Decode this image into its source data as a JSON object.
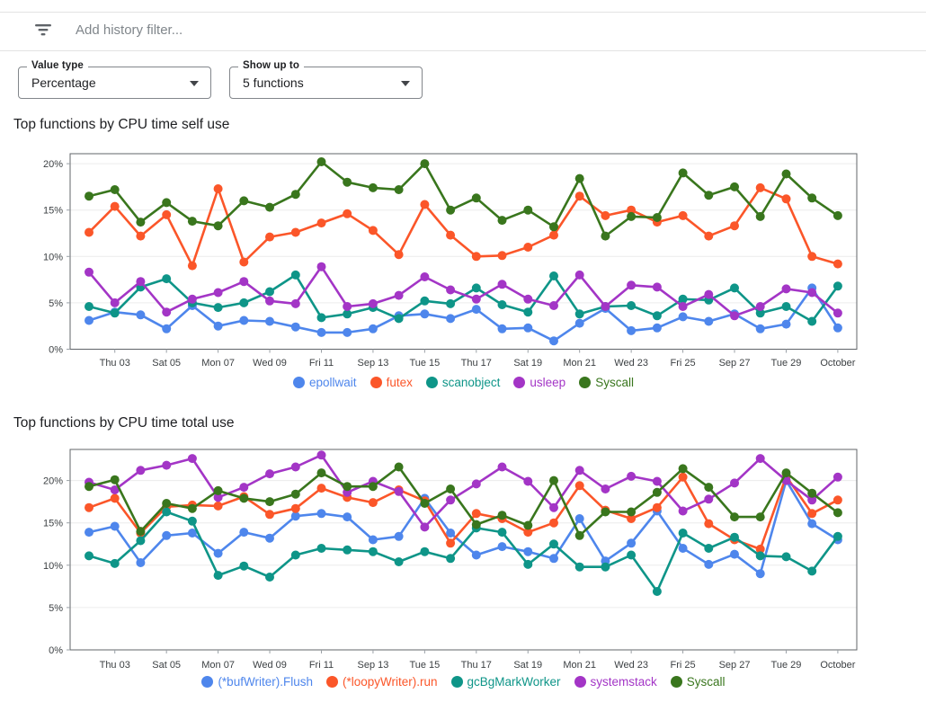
{
  "filter_bar": {
    "icon": "filter-list-icon",
    "placeholder": "Add history filter..."
  },
  "controls": {
    "value_type": {
      "label": "Value type",
      "value": "Percentage"
    },
    "show_up_to": {
      "label": "Show up to",
      "value": "5 functions"
    }
  },
  "chart_data": [
    {
      "type": "line",
      "title": "Top functions by CPU time self use",
      "xlabel": "",
      "ylabel": "",
      "ylim": [
        0,
        21
      ],
      "grid": true,
      "legend_position": "bottom",
      "yticks": [
        "0%",
        "5%",
        "10%",
        "15%",
        "20%"
      ],
      "x_tick_labels": [
        "Thu 03",
        "Sat 05",
        "Mon 07",
        "Wed 09",
        "Fri 11",
        "Sep 13",
        "Tue 15",
        "Thu 17",
        "Sat 19",
        "Mon 21",
        "Wed 23",
        "Fri 25",
        "Sep 27",
        "Tue 29",
        "October"
      ],
      "series": [
        {
          "name": "epollwait",
          "color": "#4e86ec",
          "values": [
            3.1,
            4.0,
            3.7,
            2.2,
            4.7,
            2.5,
            3.1,
            3.0,
            2.4,
            1.8,
            1.8,
            2.2,
            3.6,
            3.8,
            3.3,
            4.3,
            2.2,
            2.3,
            0.9,
            2.8,
            4.4,
            2.0,
            2.3,
            3.5,
            3.0,
            3.8,
            2.2,
            2.7,
            6.6,
            2.3
          ]
        },
        {
          "name": "futex",
          "color": "#fb5629",
          "values": [
            12.6,
            15.4,
            12.2,
            14.5,
            9.0,
            17.3,
            9.4,
            12.1,
            12.6,
            13.6,
            14.6,
            12.8,
            10.2,
            15.6,
            12.3,
            10.0,
            10.1,
            11.0,
            12.3,
            16.5,
            14.4,
            15.0,
            13.7,
            14.4,
            12.2,
            13.3,
            17.4,
            16.2,
            10.0,
            9.2
          ]
        },
        {
          "name": "scanobject",
          "color": "#0e9588",
          "values": [
            4.6,
            3.9,
            6.7,
            7.6,
            5.0,
            4.5,
            5.0,
            6.2,
            8.0,
            3.4,
            3.8,
            4.5,
            3.3,
            5.2,
            4.9,
            6.6,
            4.8,
            4.0,
            7.9,
            3.8,
            4.6,
            4.7,
            3.6,
            5.4,
            5.3,
            6.6,
            3.9,
            4.6,
            3.0,
            6.8
          ]
        },
        {
          "name": "usleep",
          "color": "#a335c6",
          "values": [
            8.3,
            5.0,
            7.3,
            4.0,
            5.4,
            6.1,
            7.3,
            5.2,
            4.9,
            8.9,
            4.6,
            4.9,
            5.8,
            7.8,
            6.4,
            5.4,
            7.0,
            5.4,
            4.7,
            8.0,
            4.6,
            6.9,
            6.7,
            4.6,
            5.9,
            3.6,
            4.6,
            6.5,
            6.1,
            3.9
          ]
        },
        {
          "name": "Syscall",
          "color": "#39761d",
          "values": [
            16.5,
            17.2,
            13.7,
            15.8,
            13.8,
            13.3,
            16.0,
            15.3,
            16.7,
            20.2,
            18.0,
            17.4,
            17.2,
            20.0,
            15.0,
            16.3,
            13.9,
            15.0,
            13.2,
            18.4,
            12.2,
            14.3,
            14.2,
            19.0,
            16.6,
            17.5,
            14.3,
            18.9,
            16.3,
            14.4
          ]
        }
      ]
    },
    {
      "type": "line",
      "title": "Top functions by CPU time total use",
      "xlabel": "",
      "ylabel": "",
      "ylim": [
        0,
        23.7
      ],
      "grid": true,
      "legend_position": "bottom",
      "yticks": [
        "0%",
        "5%",
        "10%",
        "15%",
        "20%"
      ],
      "x_tick_labels": [
        "Thu 03",
        "Sat 05",
        "Mon 07",
        "Wed 09",
        "Fri 11",
        "Sep 13",
        "Tue 15",
        "Thu 17",
        "Sat 19",
        "Mon 21",
        "Wed 23",
        "Fri 25",
        "Sep 27",
        "Tue 29",
        "October"
      ],
      "series": [
        {
          "name": "(*bufWriter).Flush",
          "color": "#4e86ec",
          "values": [
            13.9,
            14.6,
            10.3,
            13.5,
            13.8,
            11.4,
            13.9,
            13.2,
            15.8,
            16.1,
            15.7,
            13.0,
            13.4,
            17.9,
            13.8,
            11.2,
            12.2,
            11.6,
            10.8,
            15.5,
            10.5,
            12.6,
            16.4,
            12.0,
            10.1,
            11.3,
            9.0,
            20.0,
            14.9,
            13.0
          ]
        },
        {
          "name": "(*loopyWriter).run",
          "color": "#fb5629",
          "values": [
            16.8,
            17.9,
            13.8,
            16.9,
            17.1,
            17.0,
            18.1,
            16.0,
            16.7,
            19.1,
            18.0,
            17.4,
            18.9,
            17.6,
            12.6,
            16.1,
            15.5,
            13.9,
            15.0,
            19.4,
            16.5,
            15.5,
            16.8,
            20.4,
            14.9,
            13.0,
            11.9,
            20.5,
            16.1,
            17.7
          ]
        },
        {
          "name": "gcBgMarkWorker",
          "color": "#0e9588",
          "values": [
            11.1,
            10.2,
            12.9,
            16.3,
            15.2,
            8.8,
            9.9,
            8.6,
            11.2,
            12.0,
            11.8,
            11.6,
            10.4,
            11.6,
            10.8,
            14.4,
            13.9,
            10.1,
            12.5,
            9.8,
            9.8,
            11.2,
            6.9,
            13.8,
            12.0,
            13.3,
            11.1,
            11.0,
            9.3,
            13.4
          ]
        },
        {
          "name": "systemstack",
          "color": "#a335c6",
          "values": [
            19.8,
            18.9,
            21.2,
            21.8,
            22.6,
            18.0,
            19.2,
            20.8,
            21.6,
            23.0,
            18.6,
            19.9,
            18.7,
            14.5,
            17.7,
            19.6,
            21.6,
            19.9,
            16.8,
            21.2,
            19.0,
            20.5,
            19.9,
            16.4,
            17.8,
            19.7,
            22.6,
            20.0,
            17.7,
            20.4
          ]
        },
        {
          "name": "Syscall",
          "color": "#39761d",
          "values": [
            19.3,
            20.1,
            14.0,
            17.3,
            16.7,
            18.8,
            17.9,
            17.5,
            18.4,
            20.9,
            19.3,
            19.3,
            21.6,
            17.3,
            19.0,
            14.8,
            15.9,
            14.7,
            20.0,
            13.5,
            16.3,
            16.3,
            18.6,
            21.4,
            19.2,
            15.7,
            15.7,
            20.9,
            18.5,
            16.2
          ]
        }
      ]
    }
  ]
}
